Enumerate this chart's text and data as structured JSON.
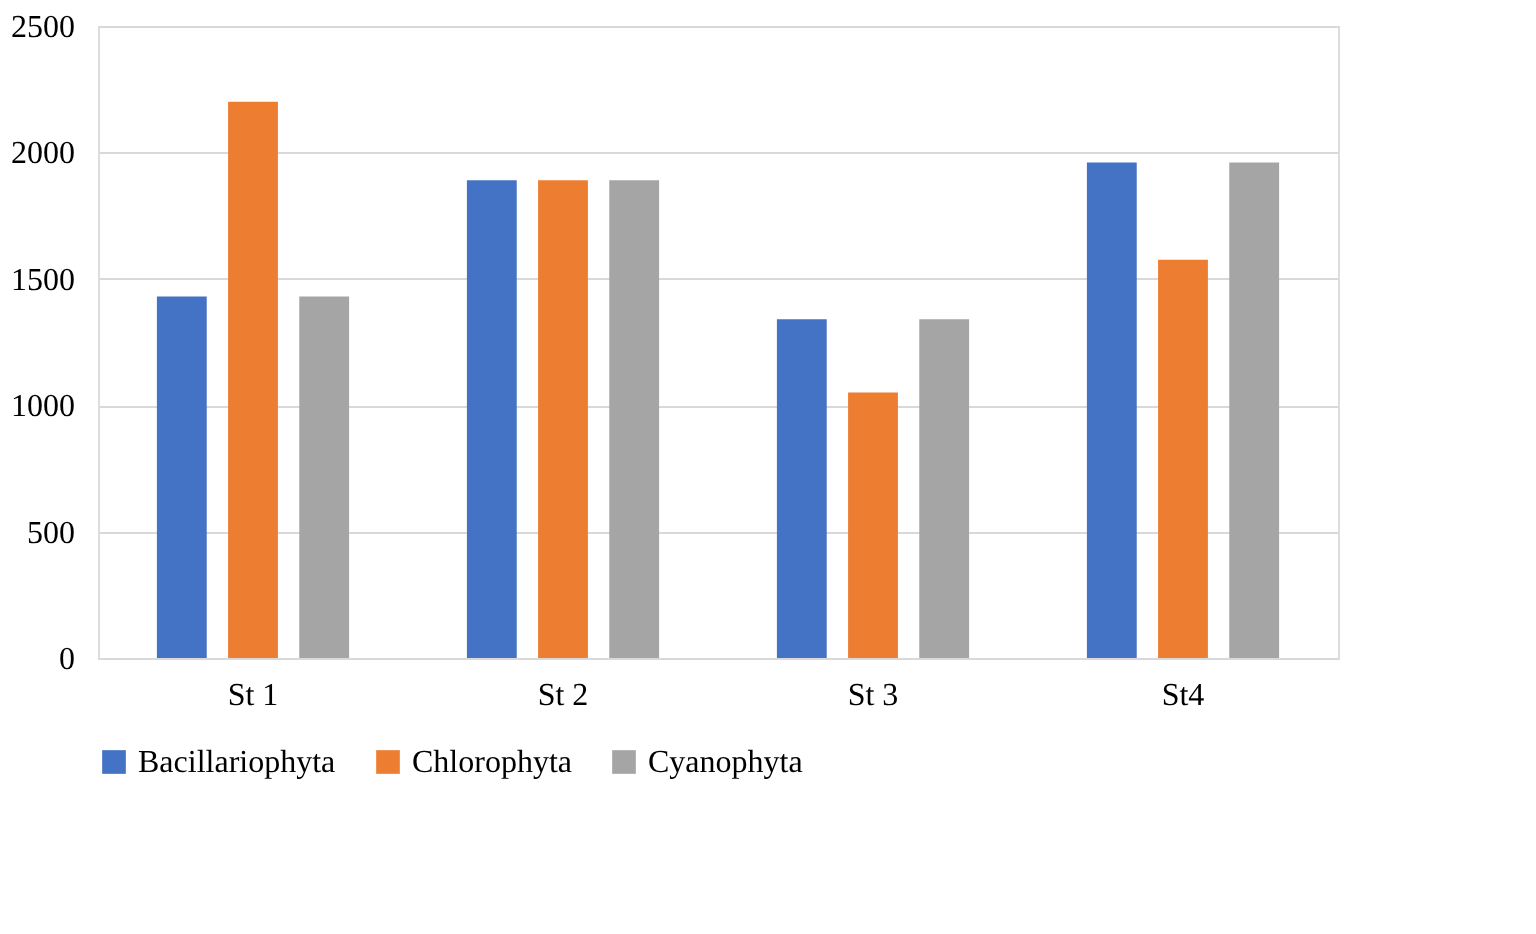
{
  "chart_data": {
    "type": "bar",
    "categories": [
      "St 1",
      "St 2",
      "St 3",
      "St4"
    ],
    "series": [
      {
        "name": "Bacillariophyta",
        "color": "#4472c4",
        "values": [
          1430,
          1890,
          1340,
          1960
        ]
      },
      {
        "name": "Chlorophyta",
        "color": "#ed7d31",
        "values": [
          2200,
          1890,
          1050,
          1575
        ]
      },
      {
        "name": "Cyanophyta",
        "color": "#a5a5a5",
        "values": [
          1430,
          1890,
          1340,
          1960
        ]
      }
    ],
    "ylim": [
      0,
      2500
    ],
    "yticks": [
      0,
      500,
      1000,
      1500,
      2000,
      2500
    ],
    "grid": "y",
    "legend": "bottom"
  }
}
